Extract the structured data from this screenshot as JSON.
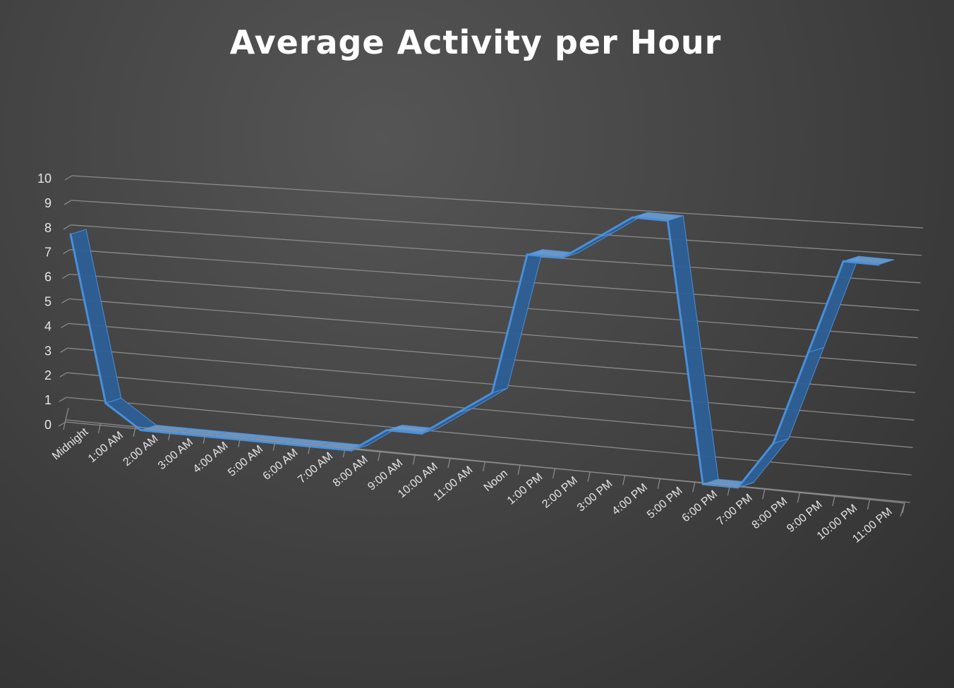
{
  "chart_data": {
    "type": "line",
    "title": "Average Activity per Hour",
    "categories": [
      "Midnight",
      "1:00 AM",
      "2:00 AM",
      "3:00 AM",
      "4:00 AM",
      "5:00 AM",
      "6:00 AM",
      "7:00 AM",
      "8:00 AM",
      "9:00 AM",
      "10:00 AM",
      "11:00 AM",
      "Noon",
      "1:00 PM",
      "2:00 PM",
      "3:00 PM",
      "4:00 PM",
      "5:00 PM",
      "6:00 PM",
      "7:00 PM",
      "8:00 PM",
      "9:00 PM",
      "10:00 PM",
      "11:00 PM"
    ],
    "series": [
      {
        "values": [
          8,
          1,
          0,
          0,
          0,
          0,
          0,
          0,
          0,
          1,
          1,
          2,
          3,
          9,
          9,
          10,
          11,
          11,
          0,
          0,
          2,
          6,
          10,
          10
        ]
      }
    ],
    "yticks": [
      "0",
      "1",
      "2",
      "3",
      "4",
      "5",
      "6",
      "7",
      "8",
      "9",
      "10"
    ],
    "ylim": [
      0,
      10
    ],
    "grid": true,
    "legend": "none",
    "colors": {
      "series": "#4a8fd8",
      "ribbon_dark": "#2c5f96",
      "ribbon_top": "#6fa3dd",
      "grid": "#8a8a8a"
    }
  }
}
